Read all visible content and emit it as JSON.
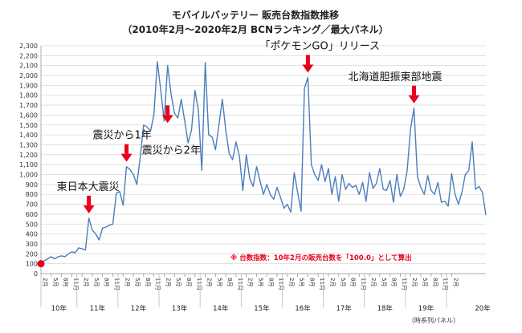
{
  "chart_data": {
    "type": "line",
    "title": "モバイルバッテリー 販売台数指数推移",
    "subtitle": "（2010年2月～2020年2月 BCNランキング／最大パネル）",
    "xlabel": "（時系列パネル）",
    "ylabel": "",
    "ylim": [
      0,
      2300
    ],
    "y_ticks": [
      "0",
      "100",
      "200",
      "300",
      "400",
      "500",
      "600",
      "700",
      "800",
      "900",
      "1,000",
      "1,100",
      "1,200",
      "1,300",
      "1,400",
      "1,500",
      "1,600",
      "1,700",
      "1,800",
      "1,900",
      "2,000",
      "2,100",
      "2,200",
      "2,300"
    ],
    "month_ticks": [
      "2月",
      "5月",
      "8月",
      "11月",
      "2月",
      "5月",
      "8月",
      "11月",
      "2月",
      "5月",
      "8月",
      "11月",
      "2月",
      "5月",
      "8月",
      "11月",
      "2月",
      "5月",
      "8月",
      "11月",
      "2月",
      "5月",
      "8月",
      "11月",
      "2月",
      "5月",
      "8月",
      "11月",
      "2月",
      "5月",
      "8月",
      "11月",
      "2月",
      "5月",
      "8月",
      "11月",
      "2月",
      "5月",
      "8月",
      "11月",
      "2月"
    ],
    "year_labels": [
      "10年",
      "11年",
      "12年",
      "13年",
      "14年",
      "15年",
      "16年",
      "17年",
      "18年",
      "19年",
      "20年"
    ],
    "grid": true,
    "line_color": "#4a7ebb",
    "values": [
      100,
      130,
      150,
      170,
      150,
      170,
      180,
      170,
      200,
      220,
      210,
      260,
      250,
      240,
      560,
      440,
      400,
      340,
      460,
      470,
      490,
      500,
      810,
      830,
      690,
      1080,
      1050,
      1000,
      900,
      1170,
      1500,
      1480,
      1440,
      1600,
      2140,
      1850,
      1540,
      2100,
      1820,
      1620,
      1570,
      1760,
      1540,
      1320,
      1450,
      1850,
      1650,
      1040,
      2130,
      1400,
      1380,
      1250,
      1500,
      1760,
      1450,
      1210,
      1150,
      1330,
      1180,
      840,
      1200,
      960,
      880,
      1080,
      940,
      800,
      900,
      800,
      750,
      870,
      770,
      660,
      700,
      620,
      1020,
      820,
      630,
      1870,
      1980,
      1100,
      1000,
      940,
      1100,
      930,
      1060,
      800,
      980,
      730,
      1000,
      850,
      910,
      870,
      890,
      800,
      920,
      730,
      1020,
      860,
      910,
      1060,
      850,
      840,
      940,
      720,
      1000,
      780,
      850,
      1040,
      1460,
      1670,
      980,
      870,
      800,
      990,
      840,
      800,
      920,
      720,
      730,
      680,
      1010,
      800,
      700,
      820,
      1000,
      1040,
      1330,
      850,
      880,
      820,
      590
    ],
    "annotations": [
      {
        "text": "東日本大震災",
        "index": 14
      },
      {
        "text": "震災から1年",
        "index": 25
      },
      {
        "text": "震災から2年",
        "index": 37
      },
      {
        "text": "「ポケモンGO」リリース",
        "index": 78
      },
      {
        "text": "北海道胆振東部地震",
        "index": 109
      }
    ],
    "note": "※ 台数指数：10年2月の販売台数を「100.0」として算出",
    "base_marker_value": 100,
    "marker_color": "#e8001c"
  }
}
